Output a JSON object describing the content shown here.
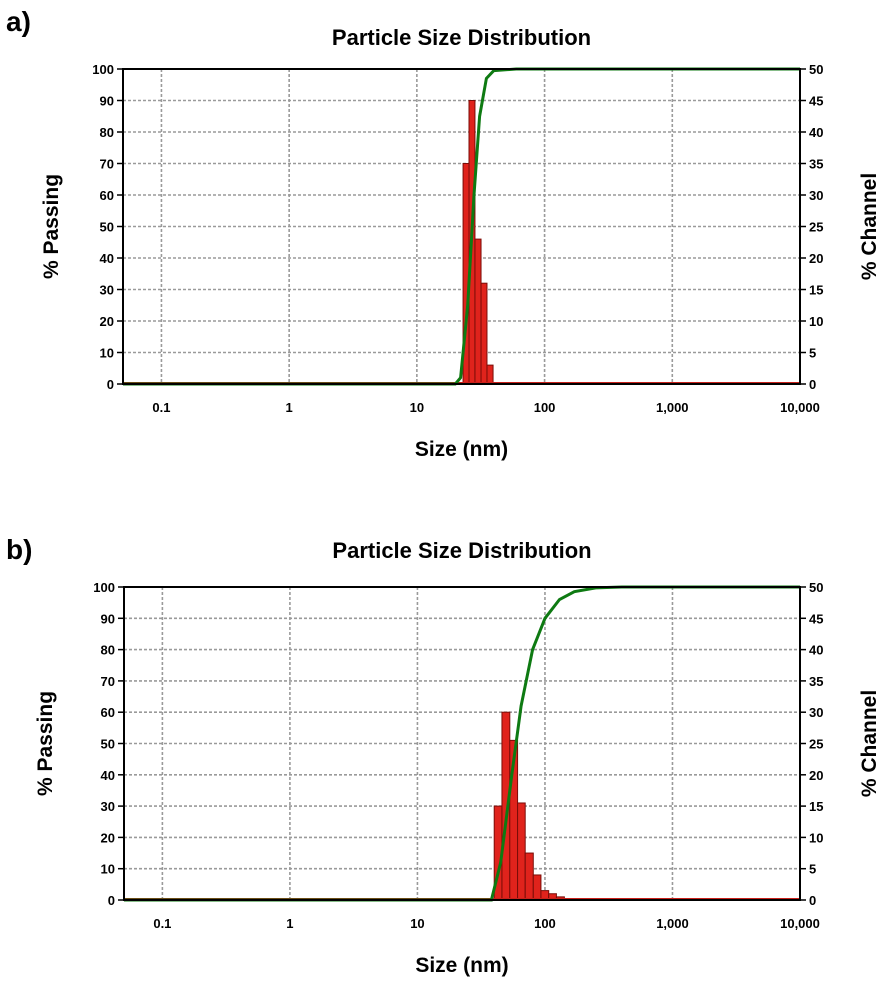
{
  "chart_data": [
    {
      "panel_label": "a)",
      "type": "bar",
      "title": "Particle Size Distribution",
      "xlabel": "Size (nm)",
      "ylabel": "% Passing",
      "y2label": "% Channel",
      "x_scale": "log",
      "xlim": [
        0.05,
        10000
      ],
      "ylim": [
        0,
        100
      ],
      "y2lim": [
        0,
        50
      ],
      "x_ticks": [
        0.1,
        1,
        10,
        100,
        1000,
        10000
      ],
      "x_tick_labels": [
        "0.1",
        "1",
        "10",
        "100",
        "1,000",
        "10,000"
      ],
      "y_ticks": [
        0,
        10,
        20,
        30,
        40,
        50,
        60,
        70,
        80,
        90,
        100
      ],
      "y2_ticks": [
        0,
        5,
        10,
        15,
        20,
        25,
        30,
        35,
        40,
        45,
        50
      ],
      "grid": true,
      "series": [
        {
          "kind": "bar",
          "axis": "y2",
          "color": "#e0231c",
          "bars": [
            {
              "x0": 23.0,
              "x1": 25.6,
              "value": 35
            },
            {
              "x0": 25.6,
              "x1": 28.5,
              "value": 45
            },
            {
              "x0": 28.5,
              "x1": 31.8,
              "value": 23
            },
            {
              "x0": 31.8,
              "x1": 35.4,
              "value": 16
            },
            {
              "x0": 35.4,
              "x1": 39.5,
              "value": 3
            }
          ]
        },
        {
          "kind": "line",
          "axis": "y",
          "color": "#0e7a12",
          "points": [
            [
              0.05,
              0
            ],
            [
              20,
              0
            ],
            [
              22,
              2
            ],
            [
              25,
              25
            ],
            [
              28,
              60
            ],
            [
              31,
              85
            ],
            [
              35,
              97
            ],
            [
              40,
              99.5
            ],
            [
              60,
              100
            ],
            [
              10000,
              100
            ]
          ]
        }
      ]
    },
    {
      "panel_label": "b)",
      "type": "bar",
      "title": "Particle Size Distribution",
      "xlabel": "Size (nm)",
      "ylabel": "% Passing",
      "y2label": "% Channel",
      "x_scale": "log",
      "xlim": [
        0.05,
        10000
      ],
      "ylim": [
        0,
        100
      ],
      "y2lim": [
        0,
        50
      ],
      "x_ticks": [
        0.1,
        1,
        10,
        100,
        1000,
        10000
      ],
      "x_tick_labels": [
        "0.1",
        "1",
        "10",
        "100",
        "1,000",
        "10,000"
      ],
      "y_ticks": [
        0,
        10,
        20,
        30,
        40,
        50,
        60,
        70,
        80,
        90,
        100
      ],
      "y2_ticks": [
        0,
        5,
        10,
        15,
        20,
        25,
        30,
        35,
        40,
        45,
        50
      ],
      "grid": true,
      "series": [
        {
          "kind": "bar",
          "axis": "y2",
          "color": "#e0231c",
          "bars": [
            {
              "x0": 40,
              "x1": 46,
              "value": 15
            },
            {
              "x0": 46,
              "x1": 53,
              "value": 30
            },
            {
              "x0": 53,
              "x1": 61,
              "value": 25.5
            },
            {
              "x0": 61,
              "x1": 70,
              "value": 15.5
            },
            {
              "x0": 70,
              "x1": 81,
              "value": 7.5
            },
            {
              "x0": 81,
              "x1": 93,
              "value": 4
            },
            {
              "x0": 93,
              "x1": 107,
              "value": 1.5
            },
            {
              "x0": 107,
              "x1": 123,
              "value": 1
            },
            {
              "x0": 123,
              "x1": 142,
              "value": 0.5
            }
          ]
        },
        {
          "kind": "line",
          "axis": "y",
          "color": "#0e7a12",
          "points": [
            [
              0.05,
              0
            ],
            [
              38,
              0
            ],
            [
              45,
              12
            ],
            [
              55,
              40
            ],
            [
              65,
              62
            ],
            [
              80,
              80
            ],
            [
              100,
              90
            ],
            [
              130,
              96
            ],
            [
              170,
              98.5
            ],
            [
              250,
              99.7
            ],
            [
              400,
              100
            ],
            [
              10000,
              100
            ]
          ]
        }
      ]
    }
  ]
}
